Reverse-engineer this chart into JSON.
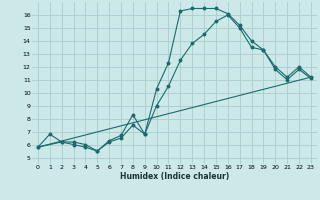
{
  "xlabel": "Humidex (Indice chaleur)",
  "background_color": "#cce8e8",
  "grid_color": "#aacccc",
  "line_color": "#1a6b6b",
  "xlim": [
    -0.5,
    23.5
  ],
  "ylim": [
    4.5,
    17.0
  ],
  "xticks": [
    0,
    1,
    2,
    3,
    4,
    5,
    6,
    7,
    8,
    9,
    10,
    11,
    12,
    13,
    14,
    15,
    16,
    17,
    18,
    19,
    20,
    21,
    22,
    23
  ],
  "yticks": [
    5,
    6,
    7,
    8,
    9,
    10,
    11,
    12,
    13,
    14,
    15,
    16
  ],
  "curve1_x": [
    0,
    1,
    2,
    3,
    4,
    5,
    6,
    7,
    8,
    9,
    10,
    11,
    12,
    13,
    14,
    15,
    16,
    17,
    18,
    19,
    20,
    21,
    22,
    23
  ],
  "curve1_y": [
    5.8,
    6.8,
    6.2,
    6.2,
    6.0,
    5.5,
    6.3,
    6.7,
    8.3,
    6.8,
    10.3,
    12.3,
    16.3,
    16.5,
    16.5,
    16.5,
    16.1,
    15.2,
    14.0,
    13.3,
    12.0,
    11.2,
    12.0,
    11.2
  ],
  "curve2_x": [
    0,
    2,
    3,
    4,
    5,
    6,
    7,
    8,
    9,
    10,
    11,
    12,
    13,
    14,
    15,
    16,
    17,
    18,
    19,
    20,
    21,
    22,
    23
  ],
  "curve2_y": [
    5.8,
    6.2,
    6.0,
    5.8,
    5.5,
    6.2,
    6.5,
    7.5,
    6.8,
    9.0,
    10.5,
    12.5,
    13.8,
    14.5,
    15.5,
    16.0,
    15.0,
    13.5,
    13.3,
    11.8,
    11.0,
    11.8,
    11.1
  ],
  "curve3_x": [
    0,
    23
  ],
  "curve3_y": [
    5.8,
    11.2
  ]
}
